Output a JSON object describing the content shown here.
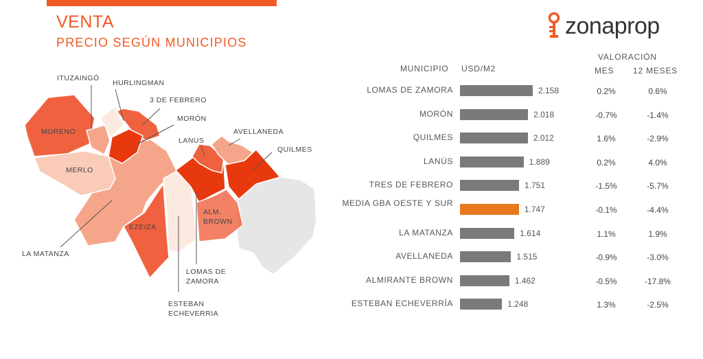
{
  "header": {
    "title": "VENTA",
    "subtitle": "PRECIO SEGÚN MUNICIPIOS",
    "logo_text": "zonaprop"
  },
  "map": {
    "labels": {
      "ituzaingo": "ITUZAINGÓ",
      "hurlingman": "HURLINGMAN",
      "tres_de_febrero": "3 DE FEBRERO",
      "moron": "MORÓN",
      "moreno": "MORENO",
      "avellaneda": "AVELLANEDA",
      "lanus": "LANUS",
      "quilmes": "QUILMES",
      "merlo": "MERLO",
      "ezeiza": "EZEIZA",
      "alm_brown_1": "ALM.",
      "alm_brown_2": "BROWN",
      "la_matanza": "LA MATANZA",
      "lomas_1": "LOMAS DE",
      "lomas_2": "ZAMORA",
      "esteban_1": "ESTEBAN",
      "esteban_2": "ECHEVERRIA"
    },
    "colors": {
      "darkest": "#e8380d",
      "dark": "#f0623f",
      "medium": "#f5a58a",
      "light": "#f9cbb8",
      "lightest": "#fce9df",
      "caba": "#e6e6e6"
    }
  },
  "table": {
    "col_municipio": "MUNICIPIO",
    "col_usd": "USD/M2",
    "col_valoracion": "VALORACIÓN",
    "col_mes": "MES",
    "col_12": "12 MESES"
  },
  "chart_data": {
    "type": "bar",
    "orientation": "horizontal",
    "categories": [
      "LOMAS DE ZAMORA",
      "MORÓN",
      "QUILMES",
      "LANÚS",
      "TRES DE FEBRERO",
      "MEDIA GBA OESTE Y SUR",
      "LA MATANZA",
      "AVELLANEDA",
      "ALMIRANTE BROWN",
      "ESTEBAN ECHEVERRÍA"
    ],
    "values": [
      2158,
      2018,
      2012,
      1889,
      1751,
      1747,
      1614,
      1515,
      1462,
      1248
    ],
    "value_labels": [
      "2.158",
      "2.018",
      "2.012",
      "1.889",
      "1.751",
      "1.747",
      "1.614",
      "1.515",
      "1.462",
      "1.248"
    ],
    "mes": [
      "0.2%",
      "-0.7%",
      "1.6%",
      "0.2%",
      "-1.5%",
      "-0.1%",
      "1.1%",
      "-0.9%",
      "-0.5%",
      "1.3%"
    ],
    "doce_meses": [
      "0.6%",
      "-1.4%",
      "-2.9%",
      "4.0%",
      "-5.7%",
      "-4.4%",
      "1.9%",
      "-3.0%",
      "-17.8%",
      "-2.5%"
    ],
    "highlight_index": 5,
    "bar_color": "#7a7a7a",
    "highlight_color": "#e8791e"
  }
}
